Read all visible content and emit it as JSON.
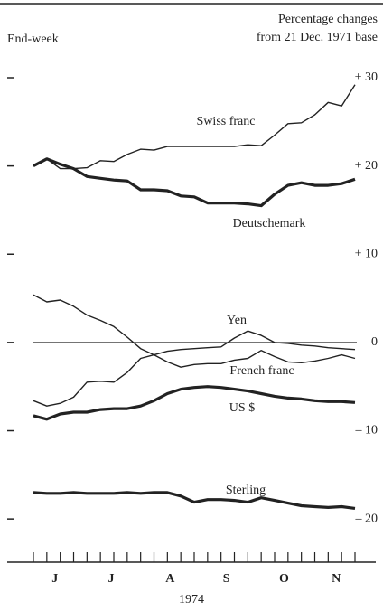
{
  "chart_data": {
    "type": "line",
    "title": "Percentage changes",
    "subtitle": "from 21 Dec. 1971 base",
    "ylabel": "End-week",
    "xlabel": "1974",
    "categories": [
      null,
      null,
      null,
      null,
      null,
      null,
      null,
      null,
      null,
      null,
      null,
      null,
      null,
      null,
      null,
      null,
      null,
      null,
      null,
      null,
      null,
      null,
      null,
      null,
      null
    ],
    "xticks": [
      {
        "value": 1.6,
        "label": "J"
      },
      {
        "value": 5.8,
        "label": "J"
      },
      {
        "value": 10.2,
        "label": "A"
      },
      {
        "value": 14.4,
        "label": "S"
      },
      {
        "value": 18.7,
        "label": "O"
      },
      {
        "value": 22.6,
        "label": "N"
      }
    ],
    "ylim": [
      -24.8,
      30
    ],
    "yticks": [
      {
        "value": 30,
        "label": "+ 30"
      },
      {
        "value": 20,
        "label": "+ 20"
      },
      {
        "value": 10,
        "label": "+ 10"
      },
      0,
      {
        "value": -10,
        "label": "– 10"
      },
      {
        "value": -20,
        "label": "– 20"
      }
    ],
    "series": [
      {
        "name": "Swiss franc",
        "color": "#222",
        "width": 1.4,
        "values": [
          20,
          20.8,
          19.7,
          19.7,
          19.8,
          20.6,
          20.5,
          21.3,
          21.9,
          21.8,
          22.2,
          22.2,
          22.2,
          22.2,
          22.2,
          22.2,
          22.4,
          22.3,
          23.5,
          24.8,
          24.9,
          25.8,
          27.2,
          26.8,
          29.2
        ]
      },
      {
        "name": "Deutschemark",
        "color": "#222",
        "width": 3.2,
        "values": [
          20,
          20.8,
          20.2,
          19.7,
          18.8,
          18.6,
          18.4,
          18.3,
          17.3,
          17.3,
          17.2,
          16.6,
          16.5,
          15.8,
          15.8,
          15.8,
          15.7,
          15.5,
          16.8,
          17.8,
          18.1,
          17.8,
          17.8,
          18.0,
          18.5
        ]
      },
      {
        "name": "Yen",
        "color": "#222",
        "width": 1.4,
        "values": [
          5.4,
          4.6,
          4.8,
          4.1,
          3.1,
          2.5,
          1.8,
          0.6,
          -0.7,
          -1.4,
          -1.0,
          -0.8,
          -0.7,
          -0.6,
          -0.5,
          0.5,
          1.3,
          0.8,
          0.0,
          -0.1,
          -0.3,
          -0.4,
          -0.6,
          -0.7,
          -0.8
        ]
      },
      {
        "name": "French franc",
        "color": "#222",
        "width": 1.4,
        "values": [
          -6.6,
          -7.2,
          -6.9,
          -6.2,
          -4.5,
          -4.4,
          -4.5,
          -3.4,
          -1.8,
          -1.4,
          -2.2,
          -2.8,
          -2.5,
          -2.4,
          -2.4,
          -2.0,
          -1.8,
          -0.9,
          -1.6,
          -2.2,
          -2.3,
          -2.1,
          -1.8,
          -1.4,
          -1.8
        ]
      },
      {
        "name": "US $",
        "color": "#222",
        "width": 3.2,
        "values": [
          -8.3,
          -8.7,
          -8.1,
          -7.9,
          -7.9,
          -7.6,
          -7.5,
          -7.5,
          -7.2,
          -6.6,
          -5.8,
          -5.3,
          -5.1,
          -5.0,
          -5.1,
          -5.3,
          -5.5,
          -5.8,
          -6.1,
          -6.3,
          -6.4,
          -6.6,
          -6.7,
          -6.7,
          -6.8
        ]
      },
      {
        "name": "Sterling",
        "color": "#222",
        "width": 3.2,
        "values": [
          -17.0,
          -17.1,
          -17.1,
          -17.0,
          -17.1,
          -17.1,
          -17.1,
          -17.0,
          -17.1,
          -17.0,
          -17.0,
          -17.4,
          -18.1,
          -17.8,
          -17.8,
          -17.9,
          -18.1,
          -17.6,
          -17.9,
          -18.2,
          -18.5,
          -18.6,
          -18.7,
          -18.6,
          -18.8
        ]
      }
    ]
  }
}
